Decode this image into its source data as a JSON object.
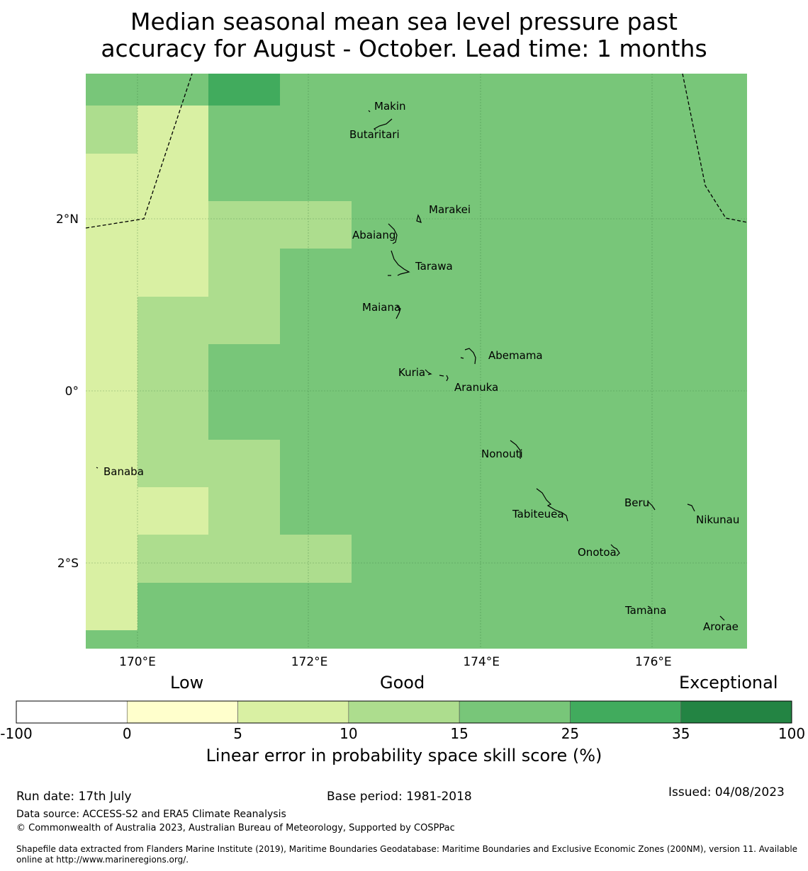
{
  "title": {
    "line1": "Median seasonal mean sea level pressure past",
    "line2": "accuracy for August - October. Lead time: 1 months"
  },
  "map": {
    "lon_range": [
      169.4,
      177.1
    ],
    "lat_range": [
      -2.95,
      3.75
    ],
    "lon_ticks": [
      {
        "value": 170,
        "label": "170°E"
      },
      {
        "value": 172,
        "label": "172°E"
      },
      {
        "value": 174,
        "label": "174°E"
      },
      {
        "value": 176,
        "label": "176°E"
      }
    ],
    "lat_ticks": [
      {
        "value": 2,
        "label": "2°N"
      },
      {
        "value": 0,
        "label": "0°"
      },
      {
        "value": -2,
        "label": "2°S"
      }
    ],
    "grid_cell_classes": [
      "0-5",
      "5-10",
      "10-15",
      "15-25",
      "25-35",
      "35-100"
    ],
    "islands": [
      {
        "name": "Makin",
        "lon": 173.0,
        "lat": 3.3
      },
      {
        "name": "Butaritari",
        "lon": 172.9,
        "lat": 3.1
      },
      {
        "name": "Marakei",
        "lon": 173.3,
        "lat": 2.0
      },
      {
        "name": "Abaiang",
        "lon": 173.0,
        "lat": 1.85
      },
      {
        "name": "Tarawa",
        "lon": 173.0,
        "lat": 1.4
      },
      {
        "name": "Maiana",
        "lon": 173.0,
        "lat": 0.95
      },
      {
        "name": "Abemama",
        "lon": 173.9,
        "lat": 0.4
      },
      {
        "name": "Kuria",
        "lon": 173.4,
        "lat": 0.2
      },
      {
        "name": "Aranuka",
        "lon": 173.6,
        "lat": 0.15
      },
      {
        "name": "Nonouti",
        "lon": 174.4,
        "lat": -0.65
      },
      {
        "name": "Banaba",
        "lon": 169.5,
        "lat": -0.85
      },
      {
        "name": "Beru",
        "lon": 176.0,
        "lat": -1.35
      },
      {
        "name": "Nikunau",
        "lon": 176.45,
        "lat": -1.35
      },
      {
        "name": "Tabiteuea",
        "lon": 174.8,
        "lat": -1.3
      },
      {
        "name": "Onotoa",
        "lon": 175.6,
        "lat": -1.8
      },
      {
        "name": "Tamana",
        "lon": 175.97,
        "lat": -2.5
      },
      {
        "name": "Arorae",
        "lon": 176.8,
        "lat": -2.65
      }
    ]
  },
  "colorbar": {
    "categories": [
      "Low",
      "Good",
      "Exceptional"
    ],
    "ticks": [
      "-100",
      "0",
      "5",
      "10",
      "15",
      "25",
      "35",
      "100"
    ],
    "colors": [
      "#ffffff",
      "#ffffcc",
      "#d9f0a3",
      "#addd8e",
      "#78c679",
      "#41ab5d",
      "#238443"
    ],
    "title": "Linear error in probability space skill score (%)"
  },
  "footer": {
    "run_date": "Run date: 17th July",
    "base_period": "Base period: 1981-2018",
    "issued": "Issued: 04/08/2023",
    "data_source": "Data source: ACCESS-S2 and ERA5 Climate Reanalysis",
    "copyright": "© Commonwealth of Australia 2023, Australian Bureau of Meteorology, Supported by COSPPac",
    "shapefile_line1": "Shapefile data extracted from Flanders Marine Institute (2019), Maritime Boundaries Geodatabase: Maritime Boundaries and Exclusive Economic Zones (200NM), version 11. Available",
    "shapefile_line2": "online at http://www.marineregions.org/."
  }
}
